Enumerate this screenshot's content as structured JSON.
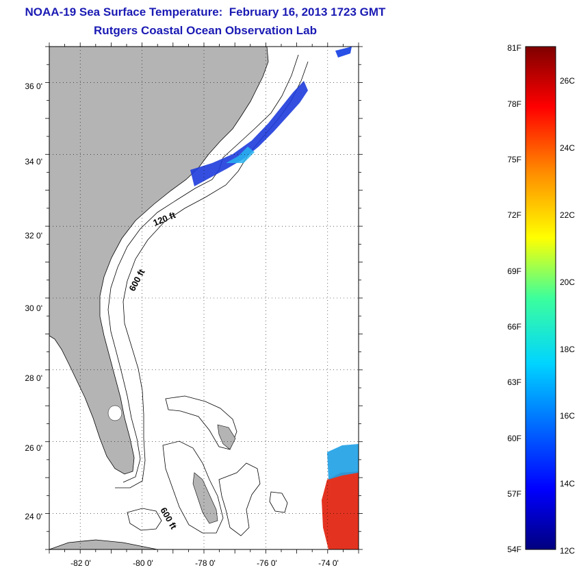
{
  "title": "NOAA-19 Sea Surface Temperature:  February 16, 2013 1723 GMT",
  "subtitle": "Rutgers Coastal Ocean Observation Lab",
  "map": {
    "lat_ticks": [
      "36 0'",
      "34 0'",
      "32 0'",
      "30 0'",
      "28 0'",
      "26 0'",
      "24 0'"
    ],
    "lon_ticks": [
      "-82 0'",
      "-80 0'",
      "-78 0'",
      "-76 0'",
      "-74 0'"
    ],
    "lat_range": [
      23,
      37
    ],
    "lon_range": [
      -83,
      -73
    ],
    "grid": "dotted",
    "isobath_labels": [
      "120 ft",
      "600 ft",
      "600 ft"
    ],
    "colors": {
      "land": "#b4b4b4",
      "sea": "#ffffff",
      "sst_cold": "#1e3cdc",
      "sst_warm": "#e12814"
    }
  },
  "colorbar": {
    "f_labels": [
      "81F",
      "78F",
      "75F",
      "72F",
      "69F",
      "66F",
      "63F",
      "60F",
      "57F",
      "54F"
    ],
    "c_labels": [
      "26C",
      "24C",
      "22C",
      "20C",
      "18C",
      "16C",
      "14C",
      "12C"
    ],
    "range_f": [
      54,
      81
    ],
    "range_c": [
      12,
      27
    ]
  }
}
